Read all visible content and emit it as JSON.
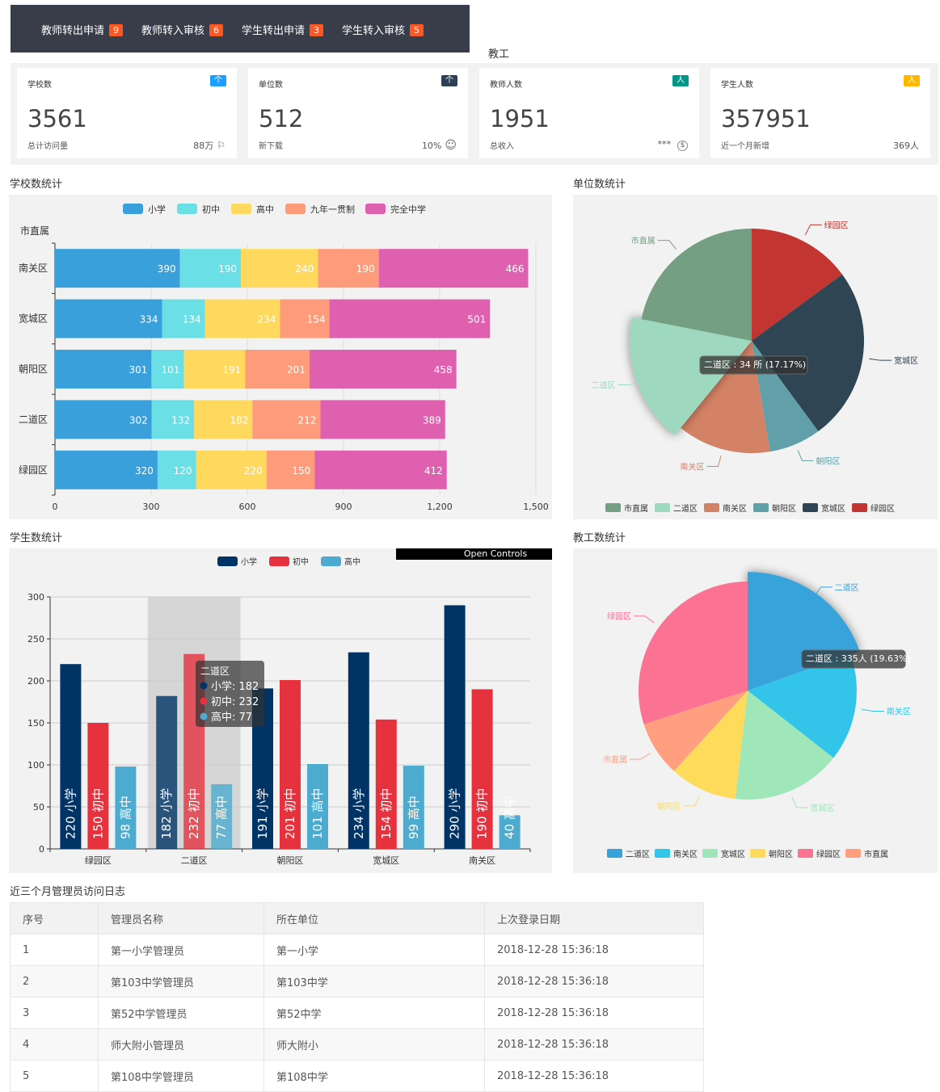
{
  "topbar": {
    "items": [
      {
        "label": "教师转出申请",
        "count": "9"
      },
      {
        "label": "教师转入审核",
        "count": "6"
      },
      {
        "label": "学生转出申请",
        "count": "3"
      },
      {
        "label": "学生转入审核",
        "count": "5"
      }
    ]
  },
  "section_label": "教工",
  "cards": [
    {
      "title": "学校数",
      "tag": "个",
      "tag_color": "#1e9fff",
      "value": "3561",
      "sub": "总计访问量",
      "num": "88万",
      "icon": "flag-icon",
      "icon_glyph": "⚐"
    },
    {
      "title": "单位数",
      "tag": "个",
      "tag_color": "#2f4056",
      "value": "512",
      "sub": "新下载",
      "num": "10%",
      "icon": "smile-icon",
      "icon_glyph": "☺"
    },
    {
      "title": "教师人数",
      "tag": "人",
      "tag_color": "#009688",
      "value": "1951",
      "sub": "总收入",
      "num": "***",
      "icon": "dollar-icon",
      "icon_glyph": "$"
    },
    {
      "title": "学生人数",
      "tag": "人",
      "tag_color": "#ffb800",
      "value": "357951",
      "sub": "近一个月新增",
      "num": "369人",
      "icon": "",
      "icon_glyph": ""
    }
  ],
  "section_titles": {
    "school": "学校数统计",
    "unit": "单位数统计",
    "student": "学生数统计",
    "staff": "教工数统计",
    "log": "近三个月管理员访问日志"
  },
  "chart_data": [
    {
      "type": "bar",
      "orientation": "horizontal",
      "stacked": true,
      "yname": "市直属",
      "categories": [
        "南关区",
        "宽城区",
        "朝阳区",
        "二道区",
        "绿园区"
      ],
      "series": [
        {
          "name": "小学",
          "color": "#3aa0db",
          "values": [
            390,
            334,
            301,
            302,
            320
          ]
        },
        {
          "name": "初中",
          "color": "#6adfe5",
          "values": [
            190,
            134,
            101,
            132,
            120
          ]
        },
        {
          "name": "高中",
          "color": "#fed95d",
          "values": [
            240,
            234,
            191,
            182,
            220
          ]
        },
        {
          "name": "九年一贯制",
          "color": "#fe9b7a",
          "values": [
            190,
            154,
            201,
            212,
            150
          ]
        },
        {
          "name": "完全中学",
          "color": "#e060b0",
          "values": [
            466,
            501,
            458,
            389,
            412
          ]
        }
      ],
      "xlim": [
        0,
        1500
      ],
      "xticks": [
        "0",
        "300",
        "600",
        "900",
        "1,200",
        "1,500"
      ],
      "legend": "top"
    },
    {
      "type": "pie",
      "slices": [
        {
          "name": "绿园区",
          "color": "#c23531"
        },
        {
          "name": "宽城区",
          "color": "#2f4554"
        },
        {
          "name": "朝阳区",
          "color": "#61a0a8"
        },
        {
          "name": "南关区",
          "color": "#d48265"
        },
        {
          "name": "二道区",
          "color": "#9ed8bf",
          "value": 34,
          "percent": 17.17
        },
        {
          "name": "市直属",
          "color": "#749f83"
        }
      ],
      "slice_fractions": [
        0.149,
        0.25,
        0.075,
        0.135,
        0.172,
        0.219
      ],
      "tooltip": "二道区 : 34 所 (17.17%)",
      "legend_order": [
        "市直属",
        "二道区",
        "南关区",
        "朝阳区",
        "宽城区",
        "绿园区"
      ],
      "legend": "bottom"
    },
    {
      "type": "bar",
      "orientation": "vertical",
      "categories": [
        "绿园区",
        "二道区",
        "朝阳区",
        "宽城区",
        "南关区"
      ],
      "series": [
        {
          "name": "小学",
          "color": "#003366",
          "values": [
            220,
            182,
            191,
            234,
            290
          ]
        },
        {
          "name": "初中",
          "color": "#e5323e",
          "values": [
            150,
            232,
            201,
            154,
            190
          ]
        },
        {
          "name": "高中",
          "color": "#4cabce",
          "values": [
            98,
            77,
            101,
            99,
            40
          ]
        }
      ],
      "ylim": [
        0,
        300
      ],
      "yticks": [
        "0",
        "50",
        "100",
        "150",
        "200",
        "250",
        "300"
      ],
      "bar_series_labels": [
        "小学",
        "初中",
        "高中"
      ],
      "tooltip": {
        "title": "二道区",
        "lines": [
          "小学: 182",
          "初中: 232",
          "高中: 77"
        ]
      },
      "highlight_category": "二道区",
      "open_controls": "Open Controls",
      "legend": "top"
    },
    {
      "type": "pie",
      "slices": [
        {
          "name": "二道区",
          "color": "#37a2da",
          "value": 335,
          "percent": 19.63
        },
        {
          "name": "南关区",
          "color": "#32c5e9"
        },
        {
          "name": "宽城区",
          "color": "#9fe6b8"
        },
        {
          "name": "朝阳区",
          "color": "#ffdb5c"
        },
        {
          "name": "市直属",
          "color": "#ff9f7f"
        },
        {
          "name": "绿园区",
          "color": "#fb7293"
        }
      ],
      "slice_fractions": [
        0.196,
        0.16,
        0.162,
        0.1,
        0.082,
        0.3
      ],
      "tooltip": "二道区 : 335人 (19.63%)",
      "legend_order": [
        "二道区",
        "南关区",
        "宽城区",
        "朝阳区",
        "绿园区",
        "市直属"
      ],
      "legend": "bottom"
    }
  ],
  "table": {
    "headers": [
      "序号",
      "管理员名称",
      "所在单位",
      "上次登录日期"
    ],
    "rows": [
      [
        "1",
        "第一小学管理员",
        "第一小学",
        "2018-12-28 15:36:18"
      ],
      [
        "2",
        "第103中学管理员",
        "第103中学",
        "2018-12-28 15:36:18"
      ],
      [
        "3",
        "第52中学管理员",
        "第52中学",
        "2018-12-28 15:36:18"
      ],
      [
        "4",
        "师大附小管理员",
        "师大附小",
        "2018-12-28 15:36:18"
      ],
      [
        "5",
        "第108中学管理员",
        "第108中学",
        "2018-12-28 15:36:18"
      ]
    ]
  }
}
